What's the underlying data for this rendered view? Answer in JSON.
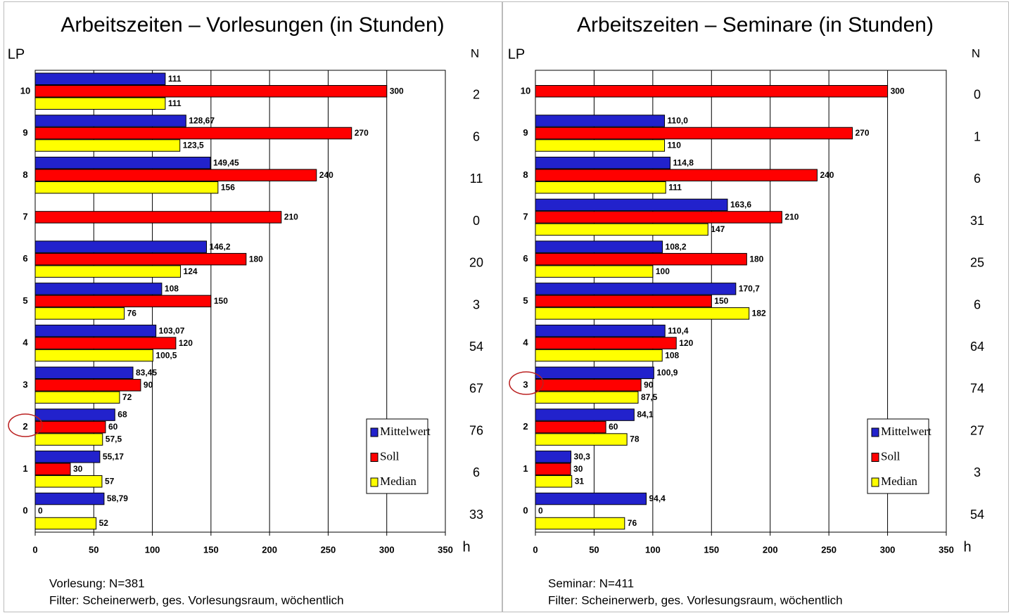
{
  "chart_data": [
    {
      "type": "bar",
      "orientation": "horizontal",
      "title": "Arbeitszeiten – Vorlesungen (in Stunden)",
      "y_label": "LP",
      "x_label": "h",
      "n_label": "N",
      "categories": [
        "10",
        "9",
        "8",
        "7",
        "6",
        "5",
        "4",
        "3",
        "2",
        "1",
        "0"
      ],
      "n_values": [
        2,
        6,
        11,
        0,
        20,
        3,
        54,
        67,
        76,
        6,
        33
      ],
      "series": [
        {
          "name": "Mittelwert",
          "color": "#2222cc",
          "values": [
            111,
            128.67,
            149.45,
            null,
            146.2,
            108,
            103.07,
            83.45,
            68,
            55.17,
            58.79
          ],
          "value_labels": [
            "111",
            "128,67",
            "149,45",
            null,
            "146,2",
            "108",
            "103,07",
            "83,45",
            "68",
            "55,17",
            "58,79"
          ]
        },
        {
          "name": "Soll",
          "color": "#ff0000",
          "values": [
            300,
            270,
            240,
            210,
            180,
            150,
            120,
            90,
            60,
            30,
            0
          ]
        },
        {
          "name": "Median",
          "color": "#ffff00",
          "values": [
            111,
            123.5,
            156,
            null,
            124,
            76,
            100.5,
            72,
            57.5,
            57,
            52
          ],
          "value_labels": [
            "111",
            "123,5",
            "156",
            null,
            "124",
            "76",
            "100,5",
            "72",
            "57,5",
            "57",
            "52"
          ]
        }
      ],
      "xlim": [
        0,
        350
      ],
      "xticks": [
        0,
        50,
        100,
        150,
        200,
        250,
        300,
        350
      ],
      "grid": true,
      "legend": "lower right",
      "notes": [
        "Vorlesung: N=381",
        "Filter: Scheinerwerb, ges. Vorlesungsraum, wöchentlich"
      ]
    },
    {
      "type": "bar",
      "orientation": "horizontal",
      "title": "Arbeitszeiten – Seminare (in Stunden)",
      "y_label": "LP",
      "x_label": "h",
      "n_label": "N",
      "categories": [
        "10",
        "9",
        "8",
        "7",
        "6",
        "5",
        "4",
        "3",
        "2",
        "1",
        "0"
      ],
      "n_values": [
        0,
        1,
        6,
        31,
        25,
        6,
        64,
        74,
        27,
        3,
        54
      ],
      "series": [
        {
          "name": "Mittelwert",
          "color": "#2222cc",
          "values": [
            null,
            110.0,
            114.8,
            163.6,
            108.2,
            170.7,
            110.4,
            100.9,
            84.1,
            30.3,
            94.4
          ],
          "value_labels": [
            null,
            "110,0",
            "114,8",
            "163,6",
            "108,2",
            "170,7",
            "110,4",
            "100,9",
            "84,1",
            "30,3",
            "94,4"
          ]
        },
        {
          "name": "Soll",
          "color": "#ff0000",
          "values": [
            300,
            270,
            240,
            210,
            180,
            150,
            120,
            90,
            60,
            30,
            0
          ]
        },
        {
          "name": "Median",
          "color": "#ffff00",
          "values": [
            null,
            110,
            111,
            147,
            100,
            182,
            108,
            87.5,
            78,
            31,
            76
          ],
          "value_labels": [
            null,
            "110",
            "111",
            "147",
            "100",
            "182",
            "108",
            "87,5",
            "78",
            "31",
            "76"
          ]
        }
      ],
      "xlim": [
        0,
        350
      ],
      "xticks": [
        0,
        50,
        100,
        150,
        200,
        250,
        300,
        350
      ],
      "grid": true,
      "legend": "lower right",
      "notes": [
        "Seminar: N=411",
        "Filter: Scheinerwerb, ges. Vorlesungsraum, wöchentlich"
      ]
    }
  ]
}
